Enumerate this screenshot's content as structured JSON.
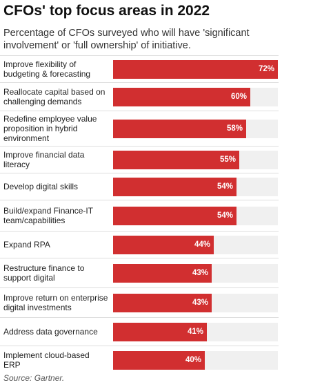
{
  "title": "CFOs' top focus areas in 2022",
  "subtitle": "Percentage of CFOs surveyed who will have 'significant involvement' or 'full ownership' of initiative.",
  "source": "Source: Gartner.",
  "colors": {
    "bar": "#d12f30",
    "track": "#f0f0f0"
  },
  "chart_data": {
    "type": "bar",
    "orientation": "horizontal",
    "title": "CFOs' top focus areas in 2022",
    "subtitle": "Percentage of CFOs surveyed who will have 'significant involvement' or 'full ownership' of initiative.",
    "categories": [
      "Improve flexibility of budgeting & forecasting",
      "Reallocate capital based on challenging demands",
      "Redefine employee value proposition in hybrid environment",
      "Improve financial data literacy",
      "Develop digital skills",
      "Build/expand Finance-IT team/capabilities",
      "Expand RPA",
      "Restructure finance to support digital",
      "Improve return on enterprise digital investments",
      "Address data governance",
      "Implement cloud-based ERP"
    ],
    "values": [
      72,
      60,
      58,
      55,
      54,
      54,
      44,
      43,
      43,
      41,
      40
    ],
    "value_labels": [
      "72%",
      "60%",
      "58%",
      "55%",
      "54%",
      "54%",
      "44%",
      "43%",
      "43%",
      "41%",
      "40%"
    ],
    "xlim": [
      0,
      72
    ],
    "grid": false,
    "legend": "none"
  }
}
